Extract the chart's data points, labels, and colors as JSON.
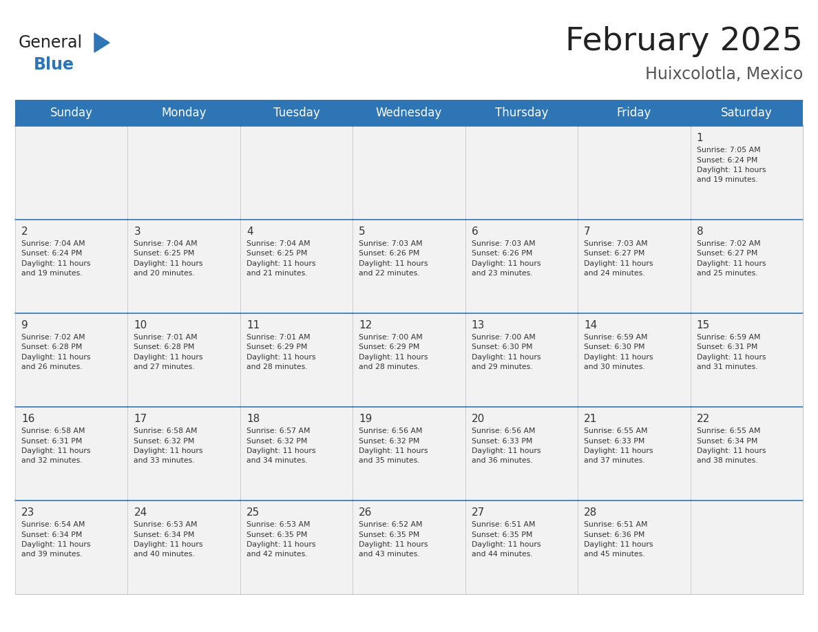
{
  "title": "February 2025",
  "subtitle": "Huixcolotla, Mexico",
  "days_of_week": [
    "Sunday",
    "Monday",
    "Tuesday",
    "Wednesday",
    "Thursday",
    "Friday",
    "Saturday"
  ],
  "header_bg": "#2E75B6",
  "header_text": "#FFFFFF",
  "bg_color": "#FFFFFF",
  "cell_bg": "#F2F2F2",
  "cell_border_color": "#2E75B6",
  "cell_outer_border": "#AAAAAA",
  "day_num_color": "#333333",
  "info_text_color": "#333333",
  "logo_general_color": "#222222",
  "logo_blue_color": "#2E75B6",
  "title_color": "#222222",
  "subtitle_color": "#555555",
  "calendar": [
    [
      null,
      null,
      null,
      null,
      null,
      null,
      1
    ],
    [
      2,
      3,
      4,
      5,
      6,
      7,
      8
    ],
    [
      9,
      10,
      11,
      12,
      13,
      14,
      15
    ],
    [
      16,
      17,
      18,
      19,
      20,
      21,
      22
    ],
    [
      23,
      24,
      25,
      26,
      27,
      28,
      null
    ]
  ],
  "sunrise": {
    "1": "7:05 AM",
    "2": "7:04 AM",
    "3": "7:04 AM",
    "4": "7:04 AM",
    "5": "7:03 AM",
    "6": "7:03 AM",
    "7": "7:03 AM",
    "8": "7:02 AM",
    "9": "7:02 AM",
    "10": "7:01 AM",
    "11": "7:01 AM",
    "12": "7:00 AM",
    "13": "7:00 AM",
    "14": "6:59 AM",
    "15": "6:59 AM",
    "16": "6:58 AM",
    "17": "6:58 AM",
    "18": "6:57 AM",
    "19": "6:56 AM",
    "20": "6:56 AM",
    "21": "6:55 AM",
    "22": "6:55 AM",
    "23": "6:54 AM",
    "24": "6:53 AM",
    "25": "6:53 AM",
    "26": "6:52 AM",
    "27": "6:51 AM",
    "28": "6:51 AM"
  },
  "sunset": {
    "1": "6:24 PM",
    "2": "6:24 PM",
    "3": "6:25 PM",
    "4": "6:25 PM",
    "5": "6:26 PM",
    "6": "6:26 PM",
    "7": "6:27 PM",
    "8": "6:27 PM",
    "9": "6:28 PM",
    "10": "6:28 PM",
    "11": "6:29 PM",
    "12": "6:29 PM",
    "13": "6:30 PM",
    "14": "6:30 PM",
    "15": "6:31 PM",
    "16": "6:31 PM",
    "17": "6:32 PM",
    "18": "6:32 PM",
    "19": "6:32 PM",
    "20": "6:33 PM",
    "21": "6:33 PM",
    "22": "6:34 PM",
    "23": "6:34 PM",
    "24": "6:34 PM",
    "25": "6:35 PM",
    "26": "6:35 PM",
    "27": "6:35 PM",
    "28": "6:36 PM"
  },
  "daylight": {
    "1": "11 hours and 19 minutes.",
    "2": "11 hours and 19 minutes.",
    "3": "11 hours and 20 minutes.",
    "4": "11 hours and 21 minutes.",
    "5": "11 hours and 22 minutes.",
    "6": "11 hours and 23 minutes.",
    "7": "11 hours and 24 minutes.",
    "8": "11 hours and 25 minutes.",
    "9": "11 hours and 26 minutes.",
    "10": "11 hours and 27 minutes.",
    "11": "11 hours and 28 minutes.",
    "12": "11 hours and 28 minutes.",
    "13": "11 hours and 29 minutes.",
    "14": "11 hours and 30 minutes.",
    "15": "11 hours and 31 minutes.",
    "16": "11 hours and 32 minutes.",
    "17": "11 hours and 33 minutes.",
    "18": "11 hours and 34 minutes.",
    "19": "11 hours and 35 minutes.",
    "20": "11 hours and 36 minutes.",
    "21": "11 hours and 37 minutes.",
    "22": "11 hours and 38 minutes.",
    "23": "11 hours and 39 minutes.",
    "24": "11 hours and 40 minutes.",
    "25": "11 hours and 42 minutes.",
    "26": "11 hours and 43 minutes.",
    "27": "11 hours and 44 minutes.",
    "28": "11 hours and 45 minutes."
  }
}
